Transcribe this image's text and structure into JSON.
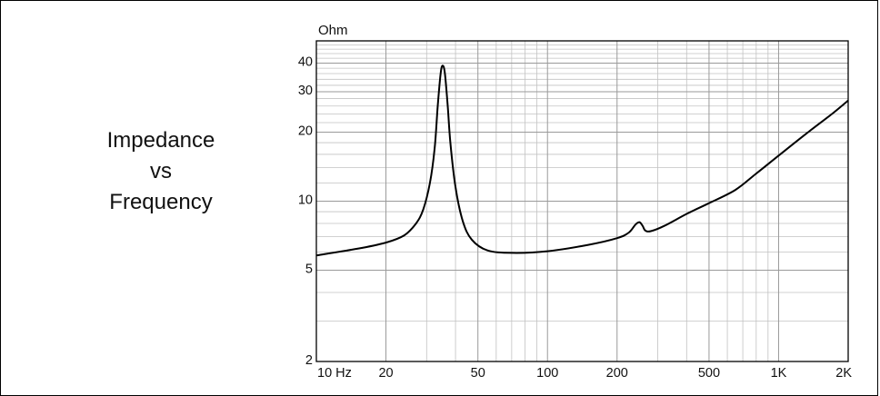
{
  "chart_data": {
    "type": "line",
    "title_lines": [
      "Impedance",
      "vs",
      "Frequency"
    ],
    "ylabel": "Ohm",
    "xlabel": "",
    "x_scale": "log",
    "y_scale": "log",
    "xlim": [
      10,
      2000
    ],
    "ylim": [
      2,
      50
    ],
    "grid": true,
    "x_ticks": [
      {
        "value": 10,
        "label": "10 Hz"
      },
      {
        "value": 20,
        "label": "20"
      },
      {
        "value": 50,
        "label": "50"
      },
      {
        "value": 100,
        "label": "100"
      },
      {
        "value": 200,
        "label": "200"
      },
      {
        "value": 500,
        "label": "500"
      },
      {
        "value": 1000,
        "label": "1K"
      },
      {
        "value": 2000,
        "label": "2K"
      }
    ],
    "y_ticks": [
      {
        "value": 2,
        "label": "2"
      },
      {
        "value": 5,
        "label": "5"
      },
      {
        "value": 10,
        "label": "10"
      },
      {
        "value": 20,
        "label": "20"
      },
      {
        "value": 30,
        "label": "30"
      },
      {
        "value": 40,
        "label": "40"
      }
    ],
    "series": [
      {
        "points": [
          [
            10,
            5.8
          ],
          [
            15,
            6.2
          ],
          [
            20,
            6.6
          ],
          [
            24,
            7.1
          ],
          [
            27,
            8.0
          ],
          [
            29,
            9.2
          ],
          [
            31,
            12.0
          ],
          [
            32.5,
            17.0
          ],
          [
            33.5,
            26.0
          ],
          [
            34.5,
            36.0
          ],
          [
            35.2,
            39.0
          ],
          [
            36,
            36.0
          ],
          [
            37,
            26.0
          ],
          [
            38,
            18.0
          ],
          [
            40,
            11.5
          ],
          [
            43,
            8.2
          ],
          [
            47,
            6.8
          ],
          [
            55,
            6.1
          ],
          [
            70,
            5.95
          ],
          [
            100,
            6.05
          ],
          [
            150,
            6.45
          ],
          [
            200,
            6.9
          ],
          [
            225,
            7.3
          ],
          [
            240,
            7.9
          ],
          [
            250,
            8.1
          ],
          [
            258,
            7.8
          ],
          [
            265,
            7.45
          ],
          [
            280,
            7.4
          ],
          [
            320,
            7.8
          ],
          [
            400,
            8.8
          ],
          [
            500,
            9.8
          ],
          [
            650,
            11.2
          ],
          [
            800,
            13.2
          ],
          [
            1000,
            15.8
          ],
          [
            1300,
            19.5
          ],
          [
            1700,
            24.0
          ],
          [
            2000,
            27.5
          ]
        ]
      }
    ]
  }
}
